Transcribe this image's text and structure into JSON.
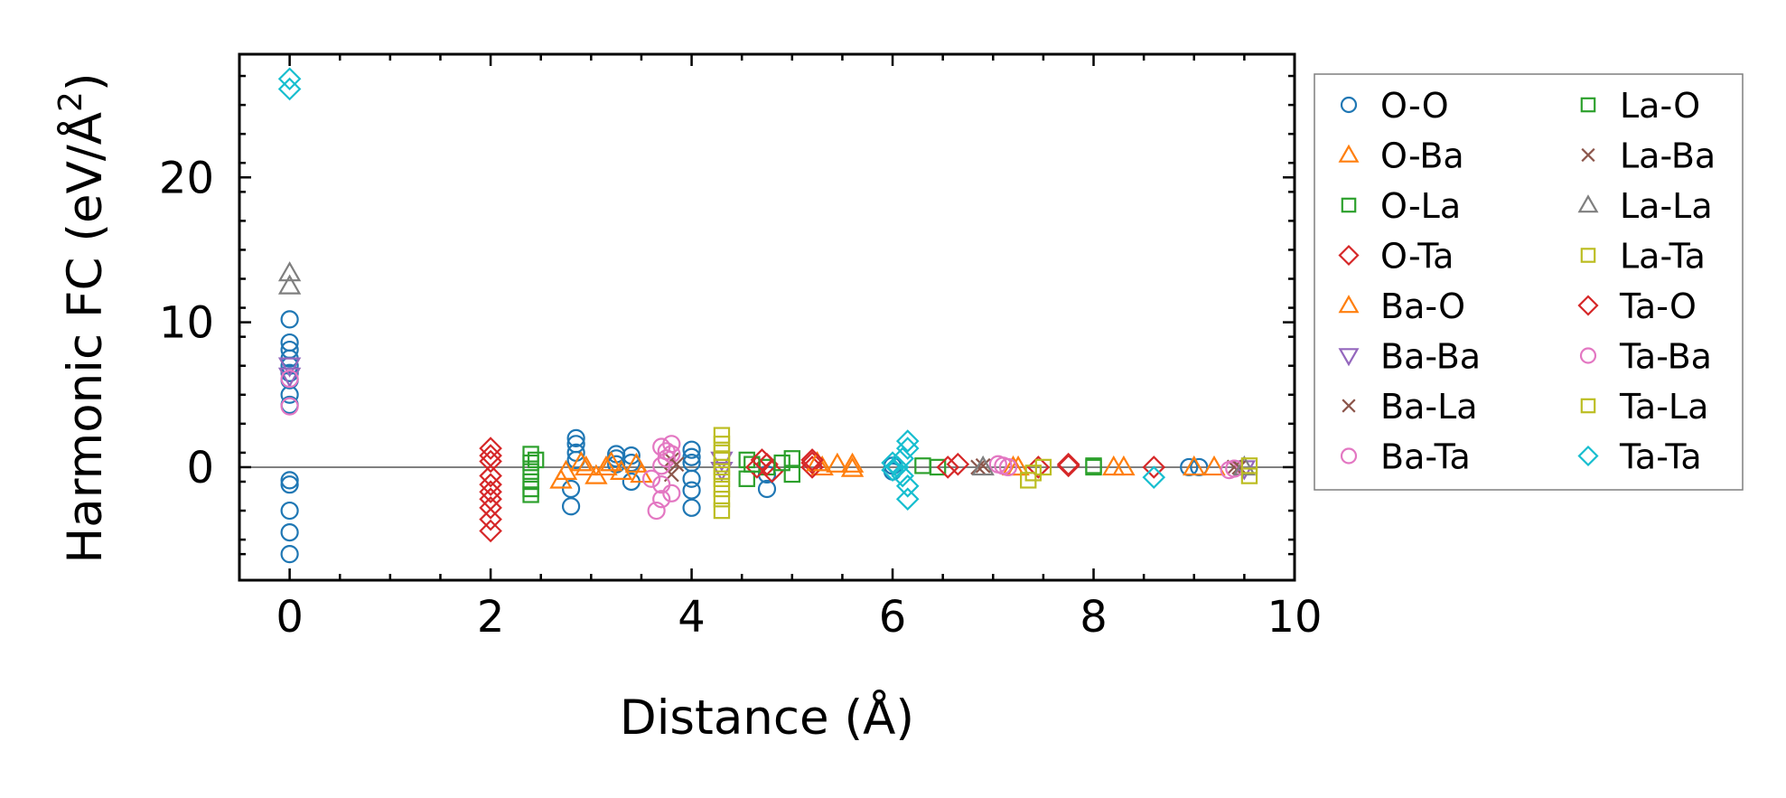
{
  "chart_data": {
    "type": "scatter",
    "xlabel": "Distance (Å)",
    "ylabel": "Harmonic FC (eV/Å²)",
    "ylabel_main": "Harmonic FC (eV/Å",
    "ylabel_sup": "2",
    "ylabel_close": ")",
    "xlim": [
      -0.5,
      10
    ],
    "ylim": [
      -7.8,
      28.5
    ],
    "xticks": [
      0,
      2,
      4,
      6,
      8,
      10
    ],
    "xtick_labels": [
      "0",
      "2",
      "4",
      "6",
      "8",
      "10"
    ],
    "yticks": [
      0,
      10,
      20
    ],
    "ytick_labels": [
      "0",
      "10",
      "20"
    ],
    "zero_line": true,
    "legend_position": "outside-right",
    "series": [
      {
        "name": "O-O",
        "marker": "circle",
        "color": "#1f77b4",
        "points": [
          [
            0,
            -6
          ],
          [
            0,
            -4.5
          ],
          [
            0,
            -3
          ],
          [
            0,
            -1.2
          ],
          [
            0,
            -0.9
          ],
          [
            0,
            4.3
          ],
          [
            0,
            5
          ],
          [
            0,
            6
          ],
          [
            0,
            6.5
          ],
          [
            0,
            7
          ],
          [
            0,
            7.5
          ],
          [
            0,
            8.1
          ],
          [
            0,
            8.6
          ],
          [
            0,
            10.2
          ],
          [
            2.8,
            -2.7
          ],
          [
            2.8,
            -1.5
          ],
          [
            2.85,
            0.5
          ],
          [
            2.85,
            1
          ],
          [
            2.85,
            1.6
          ],
          [
            2.85,
            2
          ],
          [
            3.25,
            0.2
          ],
          [
            3.25,
            0.6
          ],
          [
            3.25,
            0.9
          ],
          [
            3.4,
            -1
          ],
          [
            3.4,
            0.3
          ],
          [
            3.4,
            0.8
          ],
          [
            4,
            -2.8
          ],
          [
            4,
            -1.6
          ],
          [
            4,
            -0.8
          ],
          [
            4,
            0.3
          ],
          [
            4,
            0.7
          ],
          [
            4,
            1.2
          ],
          [
            4.75,
            -1.5
          ],
          [
            4.75,
            -0.5
          ],
          [
            6,
            -0.3
          ],
          [
            6,
            0.1
          ],
          [
            8.95,
            0
          ],
          [
            9.05,
            0
          ]
        ]
      },
      {
        "name": "O-Ba",
        "marker": "triangle-up",
        "color": "#ff7f0e",
        "points": [
          [
            2.7,
            -0.9
          ],
          [
            2.75,
            -0.3
          ],
          [
            2.95,
            0
          ],
          [
            3.05,
            -0.6
          ],
          [
            3.15,
            0
          ],
          [
            3.3,
            -0.3
          ],
          [
            3.45,
            0.2
          ],
          [
            3.5,
            -0.5
          ],
          [
            5.3,
            0
          ],
          [
            5.45,
            0.2
          ],
          [
            5.6,
            -0.1
          ],
          [
            7.2,
            0
          ],
          [
            8.2,
            0
          ],
          [
            9,
            0
          ],
          [
            9.2,
            0
          ]
        ]
      },
      {
        "name": "O-La",
        "marker": "square",
        "color": "#2ca02c",
        "points": [
          [
            2.4,
            -1.9
          ],
          [
            2.4,
            -1.5
          ],
          [
            2.4,
            -1
          ],
          [
            2.4,
            -0.3
          ],
          [
            2.4,
            0.3
          ],
          [
            2.4,
            0.9
          ],
          [
            4.55,
            -0.8
          ],
          [
            4.55,
            0.5
          ],
          [
            4.75,
            0
          ],
          [
            5,
            -0.5
          ],
          [
            5,
            0.6
          ],
          [
            6.45,
            0
          ],
          [
            8.0,
            0.1
          ]
        ]
      },
      {
        "name": "O-Ta",
        "marker": "diamond",
        "color": "#d62728",
        "points": [
          [
            2,
            -4.4
          ],
          [
            2,
            -3.6
          ],
          [
            2,
            -2.8
          ],
          [
            2,
            -2.2
          ],
          [
            2,
            -1.7
          ],
          [
            2,
            -1.2
          ],
          [
            2,
            0.4
          ],
          [
            2,
            0.8
          ],
          [
            2,
            1.3
          ],
          [
            4.65,
            0
          ],
          [
            4.75,
            0.2
          ],
          [
            4.8,
            -0.3
          ],
          [
            5.2,
            0
          ],
          [
            5.2,
            0.3
          ],
          [
            6.65,
            0.2
          ],
          [
            7.45,
            0
          ],
          [
            7.75,
            0.1
          ],
          [
            8.6,
            0
          ]
        ]
      },
      {
        "name": "Ba-O",
        "marker": "triangle-up",
        "color": "#ff7f0e",
        "points": [
          [
            2.9,
            0.3
          ],
          [
            3.2,
            0.3
          ],
          [
            5.25,
            0.3
          ],
          [
            5.6,
            0.2
          ],
          [
            7.25,
            0
          ],
          [
            8.3,
            0
          ]
        ]
      },
      {
        "name": "Ba-Ba",
        "marker": "triangle-down",
        "color": "#9467bd",
        "points": [
          [
            0,
            6.3
          ],
          [
            0,
            7
          ],
          [
            4.3,
            0.5
          ],
          [
            4.3,
            -0.2
          ],
          [
            9.5,
            -0.1
          ]
        ]
      },
      {
        "name": "Ba-La",
        "marker": "x",
        "color": "#8c564b",
        "points": [
          [
            3.8,
            -0.5
          ],
          [
            3.8,
            0.5
          ],
          [
            6.85,
            0
          ],
          [
            9.4,
            0
          ]
        ]
      },
      {
        "name": "Ba-Ta",
        "marker": "circle",
        "color": "#e377c2",
        "points": [
          [
            0,
            4.2
          ],
          [
            0,
            6.1
          ],
          [
            3.65,
            -3
          ],
          [
            3.7,
            -2.2
          ],
          [
            3.7,
            -1.2
          ],
          [
            3.7,
            0.1
          ],
          [
            3.7,
            1.4
          ],
          [
            3.75,
            0.6
          ],
          [
            3.8,
            -1.8
          ],
          [
            3.8,
            0.9
          ],
          [
            3.8,
            1.6
          ],
          [
            7.05,
            0.2
          ],
          [
            7.15,
            0
          ],
          [
            9.35,
            -0.2
          ]
        ]
      },
      {
        "name": "La-O",
        "marker": "square",
        "color": "#2ca02c",
        "points": [
          [
            2.45,
            0.5
          ],
          [
            4.6,
            0.2
          ],
          [
            4.9,
            0.3
          ],
          [
            6.3,
            0.1
          ],
          [
            8.0,
            0
          ]
        ]
      },
      {
        "name": "La-Ba",
        "marker": "x",
        "color": "#8c564b",
        "points": [
          [
            3.85,
            0.2
          ],
          [
            6.9,
            0.1
          ],
          [
            9.45,
            0
          ]
        ]
      },
      {
        "name": "La-La",
        "marker": "triangle-up",
        "color": "#7f7f7f",
        "points": [
          [
            0,
            12.5
          ],
          [
            0,
            13.4
          ],
          [
            6.9,
            0
          ],
          [
            9.5,
            0
          ]
        ]
      },
      {
        "name": "La-Ta",
        "marker": "square",
        "color": "#bcbd22",
        "points": [
          [
            4.3,
            -3
          ],
          [
            4.3,
            -2.2
          ],
          [
            4.3,
            -1.5
          ],
          [
            4.3,
            -0.8
          ],
          [
            4.3,
            0
          ],
          [
            4.3,
            0.5
          ],
          [
            4.3,
            1
          ],
          [
            4.3,
            1.6
          ],
          [
            4.3,
            2.2
          ],
          [
            7.35,
            -0.9
          ],
          [
            7.5,
            0
          ],
          [
            9.55,
            -0.6
          ]
        ]
      },
      {
        "name": "Ta-O",
        "marker": "diamond",
        "color": "#d62728",
        "points": [
          [
            2,
            -0.6
          ],
          [
            4.7,
            0.5
          ],
          [
            5.2,
            0.5
          ],
          [
            6.55,
            0
          ],
          [
            7.75,
            0.2
          ]
        ]
      },
      {
        "name": "Ta-Ba",
        "marker": "circle",
        "color": "#e377c2",
        "points": [
          [
            3.6,
            -0.8
          ],
          [
            3.75,
            1.1
          ],
          [
            7.1,
            0.1
          ],
          [
            9.4,
            -0.1
          ]
        ]
      },
      {
        "name": "Ta-La",
        "marker": "square",
        "color": "#bcbd22",
        "points": [
          [
            4.3,
            -0.3
          ],
          [
            7.4,
            -0.4
          ],
          [
            9.55,
            0.1
          ]
        ]
      },
      {
        "name": "Ta-Ta",
        "marker": "diamond",
        "color": "#17becf",
        "points": [
          [
            0,
            26.1
          ],
          [
            0,
            26.8
          ],
          [
            6,
            -0.2
          ],
          [
            6,
            0.3
          ],
          [
            6.05,
            0
          ],
          [
            6.1,
            -0.6
          ],
          [
            6.1,
            0.6
          ],
          [
            6.15,
            -2.2
          ],
          [
            6.15,
            -1.3
          ],
          [
            6.15,
            1.3
          ],
          [
            6.15,
            1.8
          ],
          [
            8.6,
            -0.7
          ]
        ]
      }
    ]
  }
}
